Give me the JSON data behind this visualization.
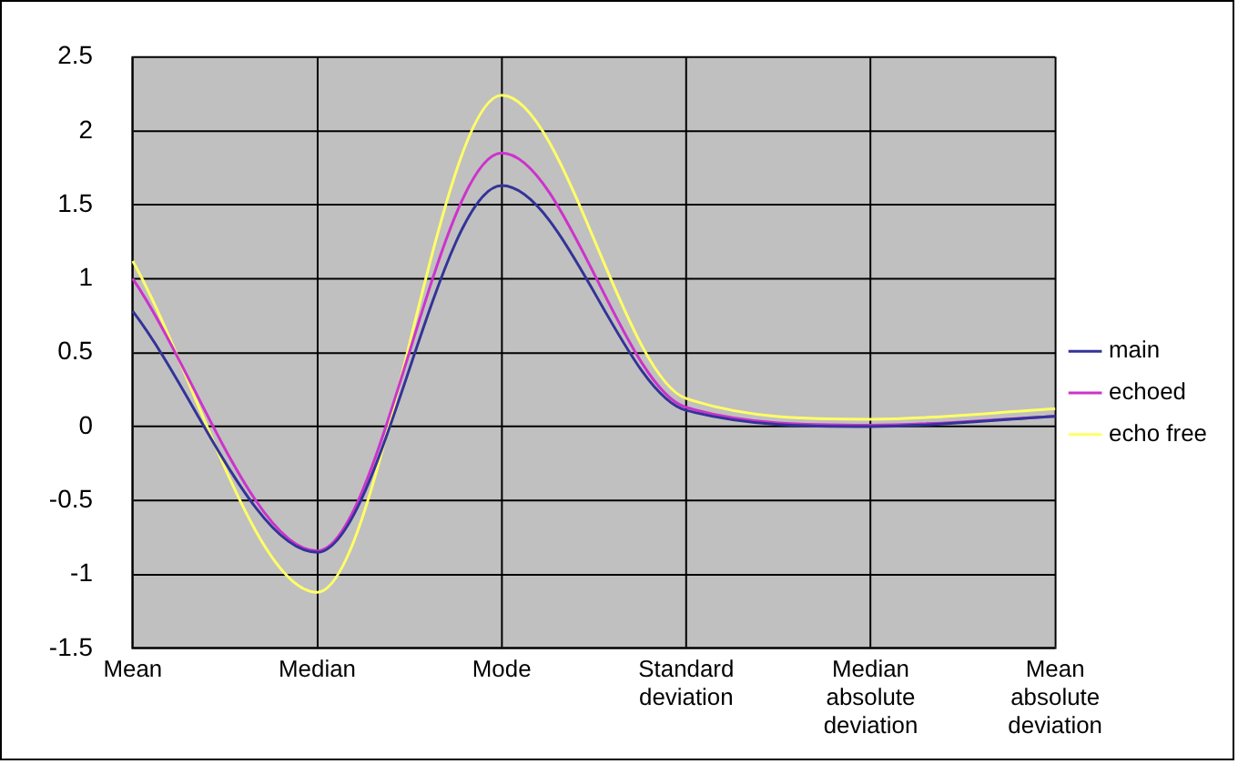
{
  "chart_data": {
    "type": "line",
    "categories": [
      "Mean",
      "Median",
      "Mode",
      "Standard deviation",
      "Median absolute deviation",
      "Mean absolute deviation"
    ],
    "series": [
      {
        "name": "main",
        "color": "#333399",
        "values": [
          0.78,
          -0.85,
          1.63,
          0.11,
          0.0,
          0.07
        ]
      },
      {
        "name": "echoed",
        "color": "#cc33cc",
        "values": [
          1.0,
          -0.84,
          1.85,
          0.13,
          0.01,
          0.07
        ]
      },
      {
        "name": "echo free",
        "color": "#ffff66",
        "values": [
          1.12,
          -1.12,
          2.24,
          0.19,
          0.05,
          0.12
        ]
      }
    ],
    "ylim": [
      -1.5,
      2.5
    ],
    "yticks": [
      -1.5,
      -1,
      -0.5,
      0,
      0.5,
      1,
      1.5,
      2,
      2.5
    ],
    "grid": true,
    "legend": "right",
    "marker": "none",
    "line_style": "solid"
  }
}
